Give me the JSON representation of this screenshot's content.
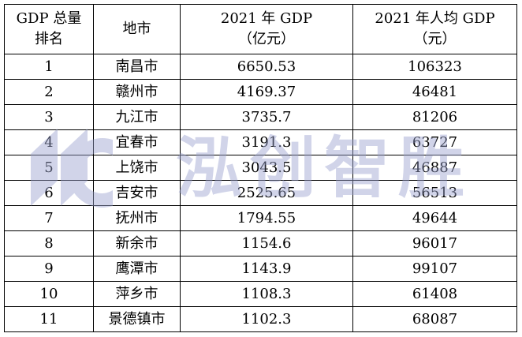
{
  "table": {
    "headers": [
      {
        "line1": "GDP 总量",
        "line2": "排名"
      },
      {
        "line1": "地市",
        "line2": ""
      },
      {
        "line1": "2021 年 GDP",
        "line2": "（亿元）"
      },
      {
        "line1": "2021 年人均 GDP",
        "line2": "（元）"
      }
    ],
    "rows": [
      {
        "rank": "1",
        "city": "南昌市",
        "gdp": "6650.53",
        "per_capita": "106323"
      },
      {
        "rank": "2",
        "city": "赣州市",
        "gdp": "4169.37",
        "per_capita": "46481"
      },
      {
        "rank": "3",
        "city": "九江市",
        "gdp": "3735.7",
        "per_capita": "81206"
      },
      {
        "rank": "4",
        "city": "宜春市",
        "gdp": "3191.3",
        "per_capita": "63727"
      },
      {
        "rank": "5",
        "city": "上饶市",
        "gdp": "3043.5",
        "per_capita": "46887"
      },
      {
        "rank": "6",
        "city": "吉安市",
        "gdp": "2525.65",
        "per_capita": "56513"
      },
      {
        "rank": "7",
        "city": "抚州市",
        "gdp": "1794.55",
        "per_capita": "49644"
      },
      {
        "rank": "8",
        "city": "新余市",
        "gdp": "1154.6",
        "per_capita": "96017"
      },
      {
        "rank": "9",
        "city": "鹰潭市",
        "gdp": "1143.9",
        "per_capita": "99107"
      },
      {
        "rank": "10",
        "city": "萍乡市",
        "gdp": "1108.3",
        "per_capita": "61408"
      },
      {
        "rank": "11",
        "city": "景德镇市",
        "gdp": "1102.3",
        "per_capita": "68087"
      }
    ]
  },
  "watermark": {
    "text": "泓创智胜",
    "color": "#9aa2cf"
  },
  "colors": {
    "border": "#000000",
    "text": "#000000",
    "background": "#ffffff"
  }
}
